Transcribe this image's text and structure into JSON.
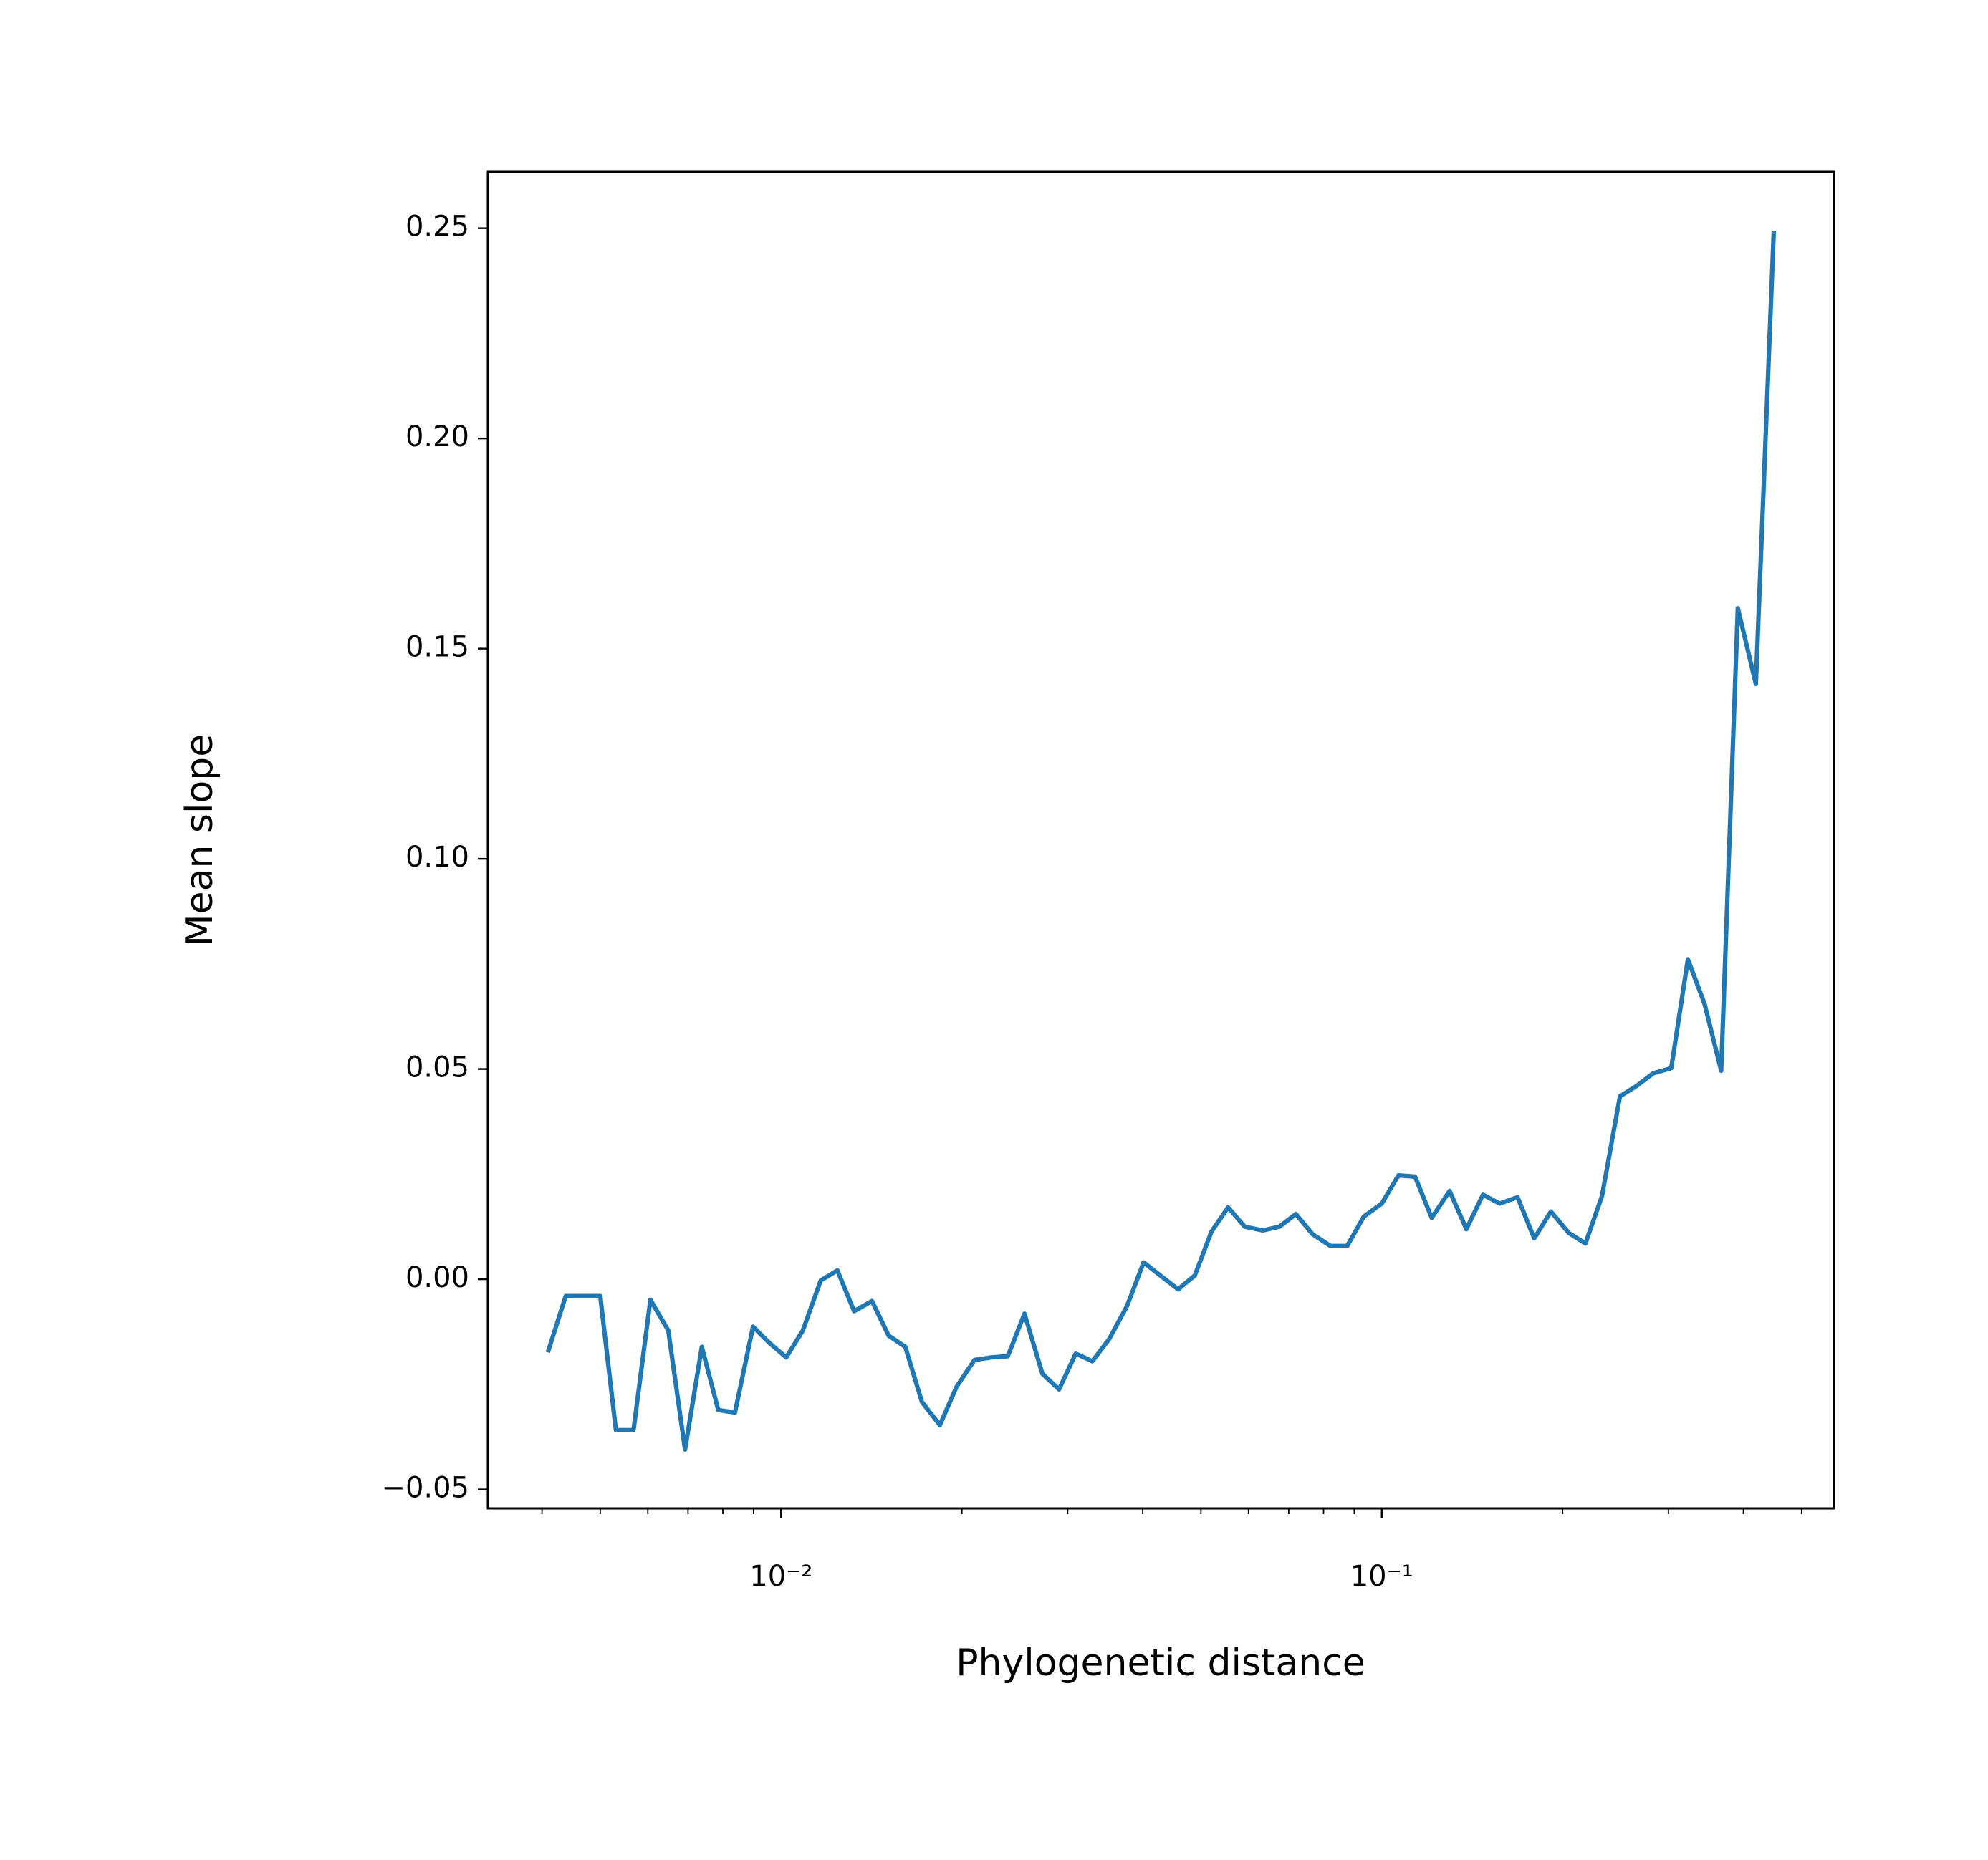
{
  "chart_data": {
    "type": "line",
    "xlabel": "Phylogenetic distance",
    "ylabel": "Mean slope",
    "xscale": "log",
    "color": "#1f77b4",
    "x": [
      0.00409,
      0.00438,
      0.00469,
      0.005,
      0.00531,
      0.00568,
      0.00606,
      0.00649,
      0.00692,
      0.00738,
      0.00786,
      0.00838,
      0.00898,
      0.00957,
      0.0102,
      0.01087,
      0.01164,
      0.01241,
      0.01323,
      0.01417,
      0.0151,
      0.0161,
      0.01716,
      0.01838,
      0.01959,
      0.02099,
      0.02237,
      0.02385,
      0.02542,
      0.02723,
      0.02902,
      0.03094,
      0.03298,
      0.03515,
      0.03766,
      0.04014,
      0.04278,
      0.04581,
      0.04884,
      0.05205,
      0.05548,
      0.05914,
      0.06336,
      0.06754,
      0.07195,
      0.07671,
      0.08218,
      0.08759,
      0.09335,
      0.1,
      0.1066,
      0.1136,
      0.1211,
      0.1297,
      0.1383,
      0.1474,
      0.1571,
      0.1683,
      0.1794,
      0.1912,
      0.2048,
      0.2183,
      0.2326,
      0.2492,
      0.2657,
      0.2831,
      0.3033,
      0.3233,
      0.3446,
      0.3673,
      0.3915,
      0.4195,
      0.4494
    ],
    "values": [
      -0.0174,
      -0.004,
      -0.004,
      -0.004,
      -0.0359,
      -0.0359,
      -0.0049,
      -0.0122,
      -0.0405,
      -0.0161,
      -0.0311,
      -0.0317,
      -0.0113,
      -0.0152,
      -0.0186,
      -0.0122,
      -0.0003,
      0.0021,
      -0.0076,
      -0.0052,
      -0.0134,
      -0.0161,
      -0.0292,
      -0.0347,
      -0.0256,
      -0.0192,
      -0.0186,
      -0.0183,
      -0.0082,
      -0.0225,
      -0.0262,
      -0.0177,
      -0.0195,
      -0.0143,
      -0.0064,
      0.004,
      0.0009,
      -0.0024,
      0.0009,
      0.0113,
      0.0171,
      0.0125,
      0.0116,
      0.0125,
      0.0155,
      0.0107,
      0.0079,
      0.0079,
      0.0149,
      0.018,
      0.0247,
      0.0244,
      0.0146,
      0.021,
      0.0119,
      0.0201,
      0.018,
      0.0195,
      0.0097,
      0.0161,
      0.011,
      0.0085,
      0.0198,
      0.0435,
      0.046,
      0.049,
      0.0502,
      0.0761,
      0.0655,
      0.0496,
      0.1596,
      0.1416,
      0.2494
    ],
    "xlim": [
      0.00325,
      0.566
    ],
    "ylim": [
      -0.0545,
      0.2634
    ],
    "xticks": [
      {
        "value": 0.01,
        "label": "10⁻²"
      },
      {
        "value": 0.1,
        "label": "10⁻¹"
      }
    ],
    "xminorticks": [
      0.004,
      0.005,
      0.006,
      0.007,
      0.008,
      0.009,
      0.02,
      0.03,
      0.04,
      0.05,
      0.06,
      0.07,
      0.08,
      0.09,
      0.2,
      0.3,
      0.4,
      0.5
    ],
    "yticks": [
      {
        "value": -0.05,
        "label": "−0.05"
      },
      {
        "value": 0,
        "label": "0.00"
      },
      {
        "value": 0.05,
        "label": "0.05"
      },
      {
        "value": 0.1,
        "label": "0.10"
      },
      {
        "value": 0.15,
        "label": "0.15"
      },
      {
        "value": 0.2,
        "label": "0.20"
      },
      {
        "value": 0.25,
        "label": "0.25"
      }
    ],
    "grid": false
  }
}
